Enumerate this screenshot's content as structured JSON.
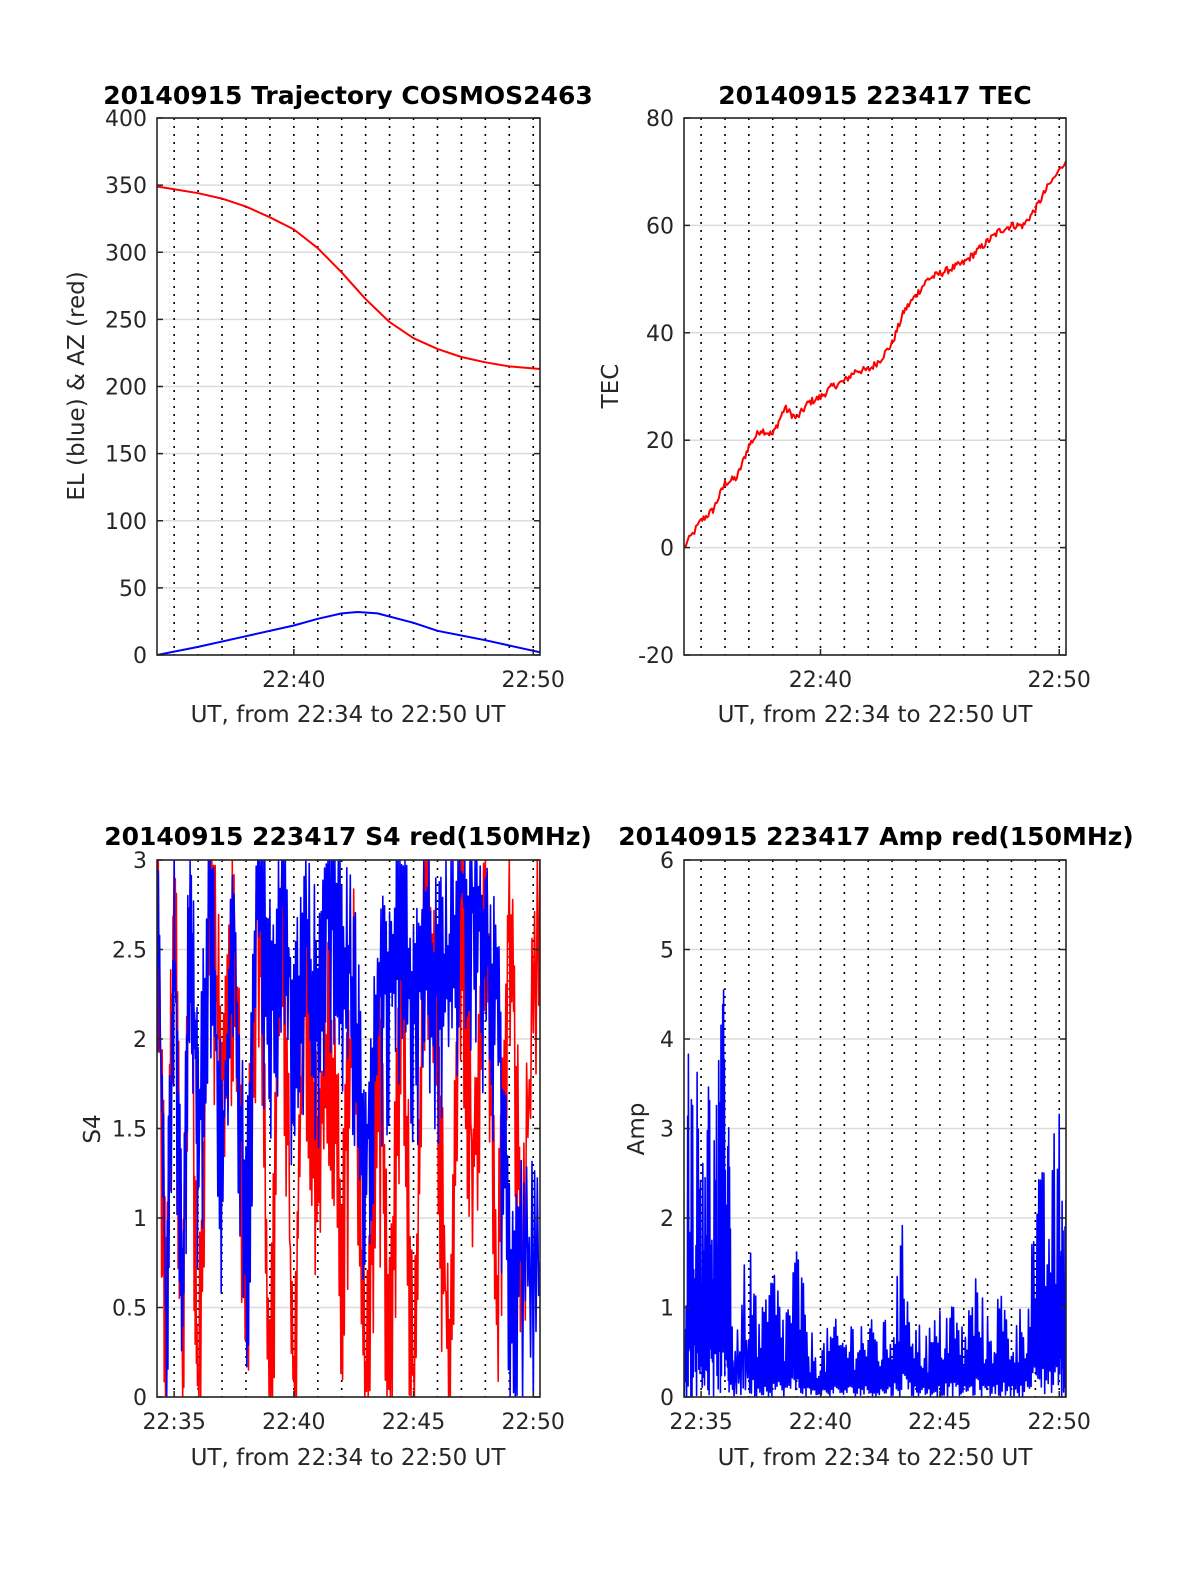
{
  "figure": {
    "background": "#ffffff",
    "colors": {
      "el": "#0000ff",
      "az": "#ff0000",
      "axis": "#262626",
      "grid_h": "#dcdcdc",
      "grid_v": "#000000"
    }
  },
  "chart_data": [
    {
      "id": "trajectory",
      "type": "line",
      "title": "20140915 Trajectory COSMOS2463",
      "xlabel": "UT, from 22:34 to 22:50 UT",
      "ylabel": "EL (blue) & AZ (red)",
      "xlim": [
        "22:34:17",
        "22:50:17"
      ],
      "ylim": [
        0,
        400
      ],
      "xticks": [
        "22:40",
        "22:50"
      ],
      "yticks": [
        0,
        50,
        100,
        150,
        200,
        250,
        300,
        350,
        400
      ],
      "grid": "horizontal solid; vertical dotted every 1 min",
      "series": [
        {
          "label": "AZ (red)",
          "color": "#ff0000",
          "x": [
            "22:34:17",
            "22:35:00",
            "22:36:00",
            "22:37:00",
            "22:38:00",
            "22:39:00",
            "22:40:00",
            "22:41:00",
            "22:42:00",
            "22:43:00",
            "22:44:00",
            "22:45:00",
            "22:46:00",
            "22:47:00",
            "22:48:00",
            "22:49:00",
            "22:50:17"
          ],
          "values": [
            349,
            347,
            344,
            340,
            334,
            326,
            317,
            303,
            285,
            265,
            248,
            236,
            228,
            222,
            218,
            215,
            213
          ]
        },
        {
          "label": "EL (blue)",
          "color": "#0000ff",
          "x": [
            "22:34:17",
            "22:36:00",
            "22:38:00",
            "22:40:00",
            "22:41:00",
            "22:42:00",
            "22:42:40",
            "22:43:30",
            "22:45:00",
            "22:46:00",
            "22:48:00",
            "22:50:17"
          ],
          "values": [
            0,
            6,
            14,
            22,
            27,
            31,
            32,
            31,
            24,
            18,
            11,
            2
          ]
        }
      ]
    },
    {
      "id": "tec",
      "type": "line",
      "title": "20140915 223417 TEC",
      "xlabel": "UT, from 22:34 to 22:50 UT",
      "ylabel": "TEC",
      "xlim": [
        "22:34:17",
        "22:50:17"
      ],
      "ylim": [
        -20,
        80
      ],
      "xticks": [
        "22:40",
        "22:50"
      ],
      "yticks": [
        -20,
        0,
        20,
        40,
        60,
        80
      ],
      "grid": "horizontal solid; vertical dotted every 1 min",
      "series": [
        {
          "label": "TEC",
          "color": "#ff0000",
          "x": [
            "22:34:17",
            "22:35:00",
            "22:35:30",
            "22:36:00",
            "22:36:30",
            "22:37:00",
            "22:37:30",
            "22:38:00",
            "22:38:30",
            "22:39:00",
            "22:39:30",
            "22:40:00",
            "22:40:30",
            "22:41:00",
            "22:41:30",
            "22:42:00",
            "22:42:30",
            "22:43:00",
            "22:43:30",
            "22:44:00",
            "22:44:30",
            "22:45:00",
            "22:45:30",
            "22:46:00",
            "22:46:30",
            "22:47:00",
            "22:47:30",
            "22:48:00",
            "22:48:30",
            "22:49:00",
            "22:49:30",
            "22:50:17"
          ],
          "values": [
            0,
            5,
            7,
            12,
            13,
            19,
            22,
            21,
            26,
            24,
            27,
            28,
            30,
            31,
            33,
            33,
            35,
            38,
            44,
            47,
            50,
            51,
            52,
            53,
            55,
            57,
            59,
            60,
            60,
            63,
            67,
            72
          ]
        }
      ]
    },
    {
      "id": "s4",
      "type": "line",
      "title": "20140915 223417 S4 red(150MHz)",
      "xlabel": "UT, from 22:34 to 22:50 UT",
      "ylabel": "S4",
      "xlim": [
        "22:34:17",
        "22:50:17"
      ],
      "ylim": [
        0,
        3
      ],
      "xticks": [
        "22:35",
        "22:40",
        "22:45",
        "22:50"
      ],
      "yticks": [
        0,
        0.5,
        1,
        1.5,
        2,
        2.5,
        3
      ],
      "grid": "horizontal solid; vertical dotted every 1 min",
      "series": [
        {
          "label": "S4 red",
          "color": "#ff0000",
          "x": [
            "22:34:17",
            "22:34:40",
            "22:35:00",
            "22:35:20",
            "22:35:40",
            "22:36:00",
            "22:36:30",
            "22:37:00",
            "22:37:30",
            "22:38:00",
            "22:38:30",
            "22:39:00",
            "22:39:30",
            "22:40:00",
            "22:40:30",
            "22:41:00",
            "22:41:30",
            "22:42:00",
            "22:42:30",
            "22:43:00",
            "22:43:30",
            "22:44:00",
            "22:44:30",
            "22:45:00",
            "22:45:30",
            "22:46:00",
            "22:46:30",
            "22:47:00",
            "22:47:30",
            "22:48:00",
            "22:48:30",
            "22:49:00",
            "22:49:30",
            "22:50:17"
          ],
          "values": [
            3,
            0.3,
            3,
            0.4,
            2.8,
            0,
            3,
            1.8,
            2.7,
            0.6,
            3,
            0,
            2.9,
            0,
            2.5,
            1.2,
            2.2,
            0.9,
            2.3,
            0,
            2.1,
            0.2,
            2.6,
            0,
            3,
            1.9,
            0,
            2.8,
            1.2,
            3,
            0.5,
            3,
            0.8,
            3
          ]
        },
        {
          "label": "S4 blue",
          "color": "#0000ff",
          "x": [
            "22:34:17",
            "22:34:40",
            "22:35:00",
            "22:35:20",
            "22:35:40",
            "22:36:00",
            "22:36:30",
            "22:37:00",
            "22:37:30",
            "22:38:00",
            "22:38:30",
            "22:39:00",
            "22:39:30",
            "22:40:00",
            "22:40:30",
            "22:41:00",
            "22:41:30",
            "22:42:00",
            "22:42:30",
            "22:43:00",
            "22:43:30",
            "22:44:00",
            "22:44:30",
            "22:45:00",
            "22:45:30",
            "22:46:00",
            "22:46:30",
            "22:47:00",
            "22:47:30",
            "22:48:00",
            "22:48:30",
            "22:49:00",
            "22:49:30",
            "22:50:17"
          ],
          "values": [
            3,
            0.4,
            2.7,
            0.5,
            2.9,
            1.4,
            2.8,
            1.4,
            2.7,
            0.8,
            2.9,
            2.2,
            2.9,
            2.1,
            2.6,
            2.2,
            2.9,
            2.5,
            2.3,
            1.3,
            2.4,
            2.3,
            2.8,
            2.1,
            2.6,
            2.3,
            2.5,
            2.9,
            2.7,
            2.6,
            2.2,
            0.7,
            0.8,
            0.75
          ]
        }
      ]
    },
    {
      "id": "amp",
      "type": "line",
      "title": "20140915 223417 Amp red(150MHz)",
      "xlabel": "UT, from 22:34 to 22:50 UT",
      "ylabel": "Amp",
      "xlim": [
        "22:34:17",
        "22:50:17"
      ],
      "ylim": [
        0,
        6
      ],
      "xticks": [
        "22:35",
        "22:40",
        "22:45",
        "22:50"
      ],
      "yticks": [
        0,
        1,
        2,
        3,
        4,
        5,
        6
      ],
      "grid": "horizontal solid; vertical dotted every 1 min",
      "series": [
        {
          "label": "Amp",
          "color": "#0000ff",
          "x": [
            "22:34:17",
            "22:34:30",
            "22:34:50",
            "22:35:10",
            "22:35:30",
            "22:35:50",
            "22:36:05",
            "22:36:20",
            "22:37:00",
            "22:37:30",
            "22:38:00",
            "22:38:30",
            "22:39:00",
            "22:39:30",
            "22:40:00",
            "22:40:30",
            "22:41:00",
            "22:41:30",
            "22:42:00",
            "22:42:30",
            "22:43:00",
            "22:43:30",
            "22:44:00",
            "22:44:30",
            "22:45:00",
            "22:45:30",
            "22:46:00",
            "22:46:30",
            "22:47:00",
            "22:47:30",
            "22:48:00",
            "22:48:30",
            "22:49:00",
            "22:49:30",
            "22:50:00",
            "22:50:17"
          ],
          "values": [
            0.7,
            4.7,
            3.8,
            4.3,
            3.3,
            4.2,
            5.2,
            0.7,
            1.8,
            0.9,
            1.6,
            1.0,
            1.9,
            0.8,
            0.6,
            0.9,
            0.8,
            1.0,
            0.9,
            0.8,
            1.0,
            2.1,
            0.9,
            0.8,
            1.0,
            1.2,
            0.8,
            1.5,
            0.9,
            1.3,
            0.9,
            1.1,
            2.5,
            2.6,
            3.3,
            2.2
          ]
        }
      ]
    }
  ]
}
